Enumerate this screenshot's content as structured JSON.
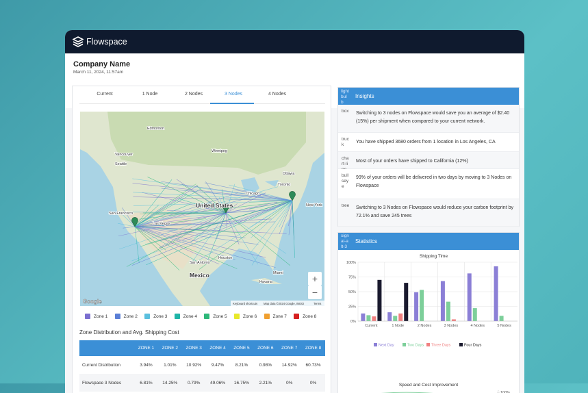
{
  "header": {
    "brand": "Flowspace"
  },
  "company": {
    "name": "Company Name",
    "date": "March 11, 2024, 11:57am"
  },
  "tabs": [
    "Current",
    "1 Node",
    "2 Nodes",
    "3 Nodes",
    "4 Nodes"
  ],
  "map": {
    "labels": [
      "Edmonton",
      "Vancouver",
      "Seattle",
      "Winnipeg",
      "Ottawa",
      "Toronto",
      "Chicago",
      "New York",
      "United States",
      "San Francisco",
      "Las Vegas",
      "Houston",
      "San Antonio",
      "Mexico",
      "Miami",
      "Havana"
    ],
    "logo": "Google",
    "shortcuts": "Keyboard shortcuts",
    "attribution": "Map data ©2024 Google, INEGI",
    "terms": "Terms"
  },
  "zones": [
    {
      "name": "Zone 1",
      "color": "#7b6fd0"
    },
    {
      "name": "Zone 2",
      "color": "#5b7fd6"
    },
    {
      "name": "Zone 3",
      "color": "#5bc0de"
    },
    {
      "name": "Zone 4",
      "color": "#1fb5a8"
    },
    {
      "name": "Zone 5",
      "color": "#2eb87a"
    },
    {
      "name": "Zone 6",
      "color": "#e8e82a"
    },
    {
      "name": "Zone 7",
      "color": "#f0a030"
    },
    {
      "name": "Zone 8",
      "color": "#d62020"
    }
  ],
  "table": {
    "title": "Zone Distribution and Avg. Shipping Cost",
    "columns": [
      "ZONE 1",
      "ZONE 2",
      "ZONE 3",
      "ZONE 4",
      "ZONE 5",
      "ZONE 6",
      "ZONE 7",
      "ZONE 8"
    ],
    "rows": [
      [
        "Current Distribution",
        "3.94%",
        "1.01%",
        "10.92%",
        "9.47%",
        "8.21%",
        "0.98%",
        "14.92%",
        "60.73%"
      ],
      [
        "Flowspace 3 Nodes",
        "6.81%",
        "14.25%",
        "0.79%",
        "49.06%",
        "16.75%",
        "2.21%",
        "0%",
        "0%"
      ]
    ]
  },
  "insights": {
    "icon": "light bulb",
    "title": "Insights",
    "items": [
      {
        "icon": "box",
        "text": "Switching to 3 nodes on Flowspace would save you an average of $2.40 (15%) per shipment when compared to your current network."
      },
      {
        "icon": "truck",
        "text": "You have shipped 3680 orders from 1 location in Los Angeles, CA"
      },
      {
        "icon": "chart-line",
        "text": "Most of your orders have shipped to California (12%)"
      },
      {
        "icon": "bullseye",
        "text": "99% of your orders will be delivered in two days by moving to 3 Nodes on Flowspace"
      },
      {
        "icon": "tree",
        "text": "Switching to 3 Nodes on Flowspace would reduce your carbon footprint by 72.1% and save 245 trees"
      }
    ]
  },
  "statistics": {
    "icon": "signal-alt-3",
    "title": "Statistics",
    "charts": [
      {
        "type": "bar",
        "title": "Shipping Time",
        "categories": [
          "Current",
          "1 Node",
          "2 Nodes",
          "3 Nodes",
          "4 Nodes",
          "5 Nodes"
        ],
        "series": [
          {
            "name": "Next Day",
            "color": "#8b7fd6",
            "values": [
              13,
              15,
              49,
              68,
              81,
              93
            ]
          },
          {
            "name": "Two Days",
            "color": "#7dcf9a",
            "values": [
              10,
              9,
              53,
              33,
              22,
              9
            ]
          },
          {
            "name": "Three Days",
            "color": "#f08080",
            "values": [
              8,
              13,
              0,
              3,
              0,
              0
            ]
          },
          {
            "name": "Four Days",
            "color": "#1a1a2e",
            "values": [
              70,
              65,
              0,
              0,
              0,
              0
            ]
          }
        ],
        "ylim": [
          0,
          100
        ],
        "yticks": [
          {
            "value": 0,
            "label": "0%"
          },
          {
            "value": 25,
            "label": "25%"
          },
          {
            "value": 50,
            "label": "50%"
          },
          {
            "value": 75,
            "label": "75%"
          },
          {
            "value": 100,
            "label": "100%"
          }
        ],
        "grid": true
      },
      {
        "title": "Speed and Cost Improvement",
        "y2ticks": [
          {
            "value": 100,
            "label": "100%"
          }
        ]
      }
    ]
  }
}
